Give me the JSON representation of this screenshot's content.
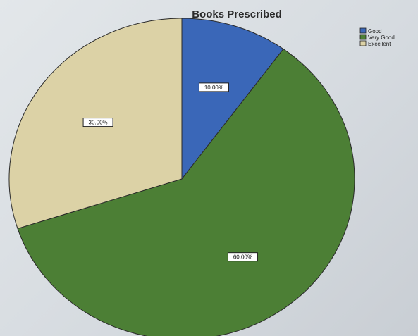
{
  "chart_data": {
    "type": "pie",
    "title": "Books Prescribed",
    "categories": [
      "Good",
      "Very Good",
      "Excellent"
    ],
    "values": [
      10,
      60,
      30
    ],
    "labels": [
      "10.00%",
      "60.00%",
      "30.00%"
    ],
    "colors": [
      "#3a67b8",
      "#4c7f35",
      "#dcd2a6"
    ],
    "legend_position": "top-right",
    "start_angle_deg": 0,
    "direction": "clockwise"
  }
}
